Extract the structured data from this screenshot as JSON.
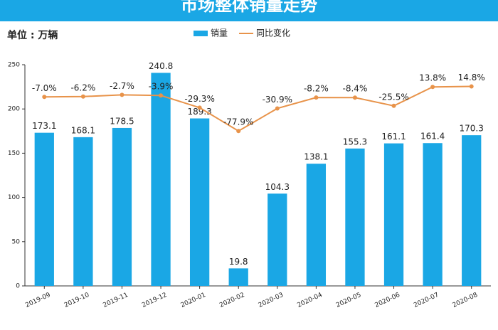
{
  "chart_data": {
    "type": "bar",
    "title": "市场整体销量走势",
    "subtitle": "单位 : 万辆",
    "categories": [
      "2019-09",
      "2019-10",
      "2019-11",
      "2019-12",
      "2020-01",
      "2020-02",
      "2020-03",
      "2020-04",
      "2020-05",
      "2020-06",
      "2020-07",
      "2020-08"
    ],
    "series": [
      {
        "name": "销量",
        "type": "bar",
        "color": "#1aa7e5",
        "values": [
          173.1,
          168.1,
          178.5,
          240.8,
          189.3,
          19.8,
          104.3,
          138.1,
          155.3,
          161.1,
          161.4,
          170.3
        ]
      },
      {
        "name": "同比变化",
        "type": "line",
        "axis": "y2",
        "color": "#e8934a",
        "values": [
          -7.0,
          -6.2,
          -2.7,
          -3.9,
          -29.3,
          -77.9,
          -30.9,
          -8.2,
          -8.4,
          -25.5,
          13.8,
          14.8
        ],
        "value_labels": [
          "-7.0%",
          "-6.2%",
          "-2.7%",
          "-3.9%",
          "-29.3%",
          "-77.9%",
          "-30.9%",
          "-8.2%",
          "-8.4%",
          "-25.5%",
          "13.8%",
          "14.8%"
        ]
      }
    ],
    "ylim": [
      0,
      250
    ],
    "yticks": [
      0,
      50,
      100,
      150,
      200,
      250
    ],
    "y2lim": [
      -400,
      60
    ],
    "grid": false
  }
}
